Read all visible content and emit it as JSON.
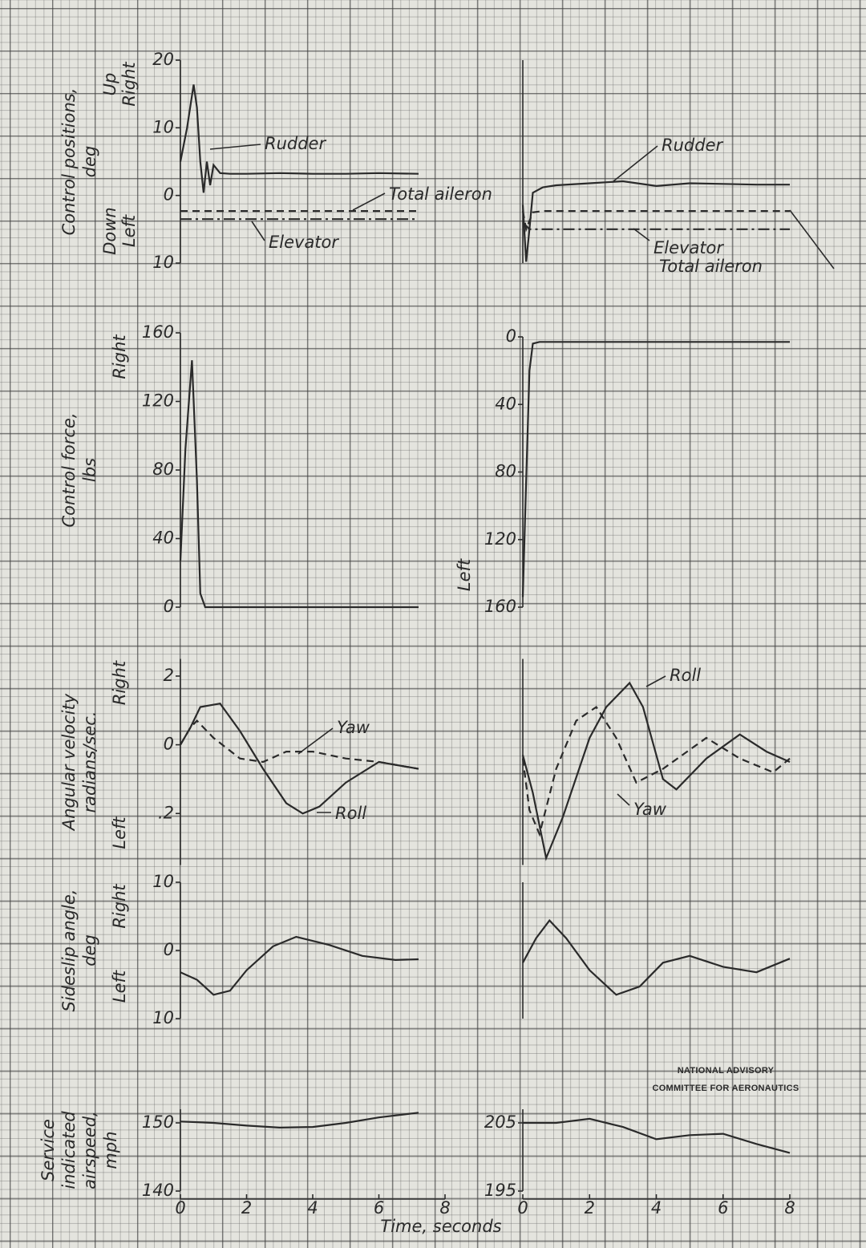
{
  "chart_data": [
    {
      "type": "line",
      "ylabel": [
        "Control positions,",
        "deg"
      ],
      "upper_label": [
        "Up",
        "Right"
      ],
      "lower_label": [
        "Down",
        "Left"
      ],
      "ylim": [
        -10,
        20
      ],
      "yticks": [
        20,
        10,
        0,
        {
          "value": -10,
          "label": "10"
        }
      ],
      "xlim": [
        0,
        8
      ],
      "annotations": [
        "Rudder",
        "Total aileron",
        "Elevator"
      ],
      "series": [
        {
          "dash": "solid",
          "color": "#2a2a2a",
          "x": [
            0,
            0.2,
            0.4,
            0.5,
            0.6,
            0.7,
            0.8,
            0.9,
            1.0,
            1.2,
            1.5,
            2,
            3,
            4,
            5,
            6,
            7.2
          ],
          "values": [
            5,
            10,
            16.4,
            13,
            5,
            0.4,
            5,
            1.5,
            4.5,
            3.3,
            3.2,
            3.2,
            3.3,
            3.2,
            3.2,
            3.3,
            3.2
          ]
        },
        {
          "dash": "dashed",
          "color": "#2a2a2a",
          "x": [
            0,
            7.2
          ],
          "values": [
            -2.3,
            -2.3
          ]
        },
        {
          "dash": "dashdot",
          "color": "#2a2a2a",
          "x": [
            0,
            7.2
          ],
          "values": [
            -3.5,
            -3.5
          ]
        }
      ]
    },
    {
      "type": "line",
      "ylim": [
        -10,
        20
      ],
      "xlim": [
        0,
        8
      ],
      "annotations": [
        "Rudder",
        "Elevator",
        "Total aileron"
      ],
      "series": [
        {
          "dash": "solid",
          "color": "#2a2a2a",
          "x": [
            0,
            0.1,
            0.2,
            0.3,
            0.6,
            1,
            2,
            3,
            4,
            5,
            6,
            7,
            8
          ],
          "values": [
            -1.4,
            -9.8,
            -5,
            0.4,
            1.2,
            1.5,
            1.8,
            2.1,
            1.4,
            1.8,
            1.7,
            1.6,
            1.6
          ]
        },
        {
          "dash": "dashdot",
          "color": "#2a2a2a",
          "x": [
            0,
            0.2,
            0.5,
            8
          ],
          "values": [
            -4,
            -5,
            -5,
            -5
          ]
        },
        {
          "dash": "dashed",
          "color": "#2a2a2a",
          "x": [
            0,
            0.1,
            0.3,
            0.6,
            8
          ],
          "values": [
            -2.3,
            -5,
            -2.5,
            -2.3,
            -2.3
          ]
        }
      ]
    },
    {
      "type": "line",
      "ylabel": [
        "Control force,",
        "lbs"
      ],
      "upper_label": [
        "Right"
      ],
      "ylim": [
        0,
        160
      ],
      "yticks": [
        160,
        120,
        80,
        40,
        0
      ],
      "xlim": [
        0,
        8
      ],
      "series": [
        {
          "dash": "solid",
          "color": "#2a2a2a",
          "x": [
            0,
            0.15,
            0.35,
            0.5,
            0.6,
            0.75,
            7.2
          ],
          "values": [
            27,
            92,
            144,
            74,
            8,
            0,
            0
          ]
        }
      ]
    },
    {
      "type": "line",
      "lower_label": [
        "Left"
      ],
      "ylim": [
        160,
        0
      ],
      "yticks": [
        0,
        40,
        80,
        120,
        160
      ],
      "xlim": [
        0,
        8
      ],
      "series": [
        {
          "dash": "solid",
          "color": "#2a2a2a",
          "x": [
            0,
            0.1,
            0.2,
            0.3,
            0.5,
            8
          ],
          "values": [
            154,
            85,
            20,
            4,
            3,
            3
          ]
        }
      ]
    },
    {
      "type": "line",
      "ylabel": [
        "Angular velocity",
        "radians/sec."
      ],
      "upper_label": [
        "Right"
      ],
      "lower_label": [
        "Left"
      ],
      "ylim": [
        -0.35,
        0.25
      ],
      "yticks": [
        {
          "value": 0.2,
          "label": "2"
        },
        0,
        {
          "value": -0.2,
          "label": ".2"
        }
      ],
      "xlim": [
        0,
        8
      ],
      "annotations": [
        "Yaw",
        "Roll"
      ],
      "series": [
        {
          "dash": "solid",
          "color": "#2a2a2a",
          "x": [
            0,
            0.3,
            0.6,
            1.2,
            1.8,
            2.5,
            3.2,
            3.7,
            4.2,
            5,
            6,
            7.2
          ],
          "values": [
            0,
            0.05,
            0.11,
            0.12,
            0.04,
            -0.07,
            -0.17,
            -0.2,
            -0.18,
            -0.11,
            -0.05,
            -0.07
          ]
        },
        {
          "dash": "dashed",
          "color": "#2a2a2a",
          "x": [
            0,
            0.3,
            0.5,
            1,
            1.8,
            2.5,
            3.2,
            4,
            5,
            6,
            7.2
          ],
          "values": [
            0,
            0.05,
            0.07,
            0.02,
            -0.04,
            -0.05,
            -0.02,
            -0.02,
            -0.04,
            -0.05,
            -0.07
          ]
        }
      ]
    },
    {
      "type": "line",
      "ylim": [
        -0.35,
        0.25
      ],
      "xlim": [
        0,
        8
      ],
      "annotations": [
        "Roll",
        "Yaw"
      ],
      "series": [
        {
          "dash": "solid",
          "color": "#2a2a2a",
          "x": [
            0,
            0.3,
            0.7,
            1.2,
            2,
            2.5,
            3.2,
            3.6,
            4.2,
            4.6,
            5.5,
            6.5,
            7.3,
            8
          ],
          "values": [
            -0.03,
            -0.14,
            -0.33,
            -0.21,
            0.02,
            0.11,
            0.18,
            0.11,
            -0.1,
            -0.13,
            -0.04,
            0.03,
            -0.02,
            -0.05
          ]
        },
        {
          "dash": "dashed",
          "color": "#2a2a2a",
          "x": [
            0,
            0.2,
            0.5,
            1,
            1.6,
            2.2,
            2.8,
            3.4,
            4.2,
            5.5,
            6.5,
            7.5,
            8
          ],
          "values": [
            -0.04,
            -0.19,
            -0.26,
            -0.07,
            0.07,
            0.11,
            0.02,
            -0.11,
            -0.07,
            0.02,
            -0.04,
            -0.08,
            -0.04
          ]
        }
      ]
    },
    {
      "type": "line",
      "ylabel": [
        "Sideslip angle,",
        "deg"
      ],
      "upper_label": [
        "Right"
      ],
      "lower_label": [
        "Left"
      ],
      "ylim": [
        -10,
        10
      ],
      "yticks": [
        10,
        0,
        {
          "value": -10,
          "label": "10"
        }
      ],
      "xlim": [
        0,
        8
      ],
      "series": [
        {
          "dash": "solid",
          "color": "#2a2a2a",
          "x": [
            0,
            0.5,
            1,
            1.5,
            2,
            2.8,
            3.5,
            4.5,
            5.5,
            6.5,
            7.2
          ],
          "values": [
            -3.2,
            -4.3,
            -6.5,
            -5.9,
            -2.9,
            0.6,
            2,
            0.8,
            -0.8,
            -1.4,
            -1.3
          ]
        }
      ]
    },
    {
      "type": "line",
      "ylim": [
        -10,
        10
      ],
      "xlim": [
        0,
        8
      ],
      "series": [
        {
          "dash": "solid",
          "color": "#2a2a2a",
          "x": [
            0,
            0.4,
            0.8,
            1.3,
            2,
            2.8,
            3.5,
            4.2,
            5,
            6,
            7,
            8
          ],
          "values": [
            -1.8,
            1.8,
            4.4,
            1.8,
            -2.9,
            -6.5,
            -5.3,
            -1.8,
            -0.8,
            -2.4,
            -3.2,
            -1.2
          ]
        }
      ]
    },
    {
      "type": "line",
      "ylabel": [
        "Service",
        "indicated",
        "airspeed,",
        "mph"
      ],
      "ylim": [
        140,
        152
      ],
      "yticks": [
        150,
        140
      ],
      "xlim": [
        0,
        8
      ],
      "xticks": [
        0,
        2,
        4,
        6,
        8
      ],
      "xlabel": "Time, seconds",
      "series": [
        {
          "dash": "solid",
          "color": "#2a2a2a",
          "x": [
            0,
            1,
            2,
            3,
            4,
            5,
            6,
            7.2
          ],
          "values": [
            150.2,
            150,
            149.6,
            149.3,
            149.4,
            150,
            150.8,
            151.5
          ]
        }
      ]
    },
    {
      "type": "line",
      "ylim": [
        195,
        207
      ],
      "yticks": [
        205,
        195
      ],
      "xlim": [
        0,
        8
      ],
      "xticks": [
        0,
        2,
        4,
        6,
        8
      ],
      "series": [
        {
          "dash": "solid",
          "color": "#2a2a2a",
          "x": [
            0,
            1,
            2,
            3,
            4,
            5,
            6,
            7,
            8
          ],
          "values": [
            205,
            205,
            205.6,
            204.4,
            202.6,
            203.2,
            203.4,
            201.9,
            200.6
          ]
        }
      ]
    }
  ],
  "credit": [
    "NATIONAL ADVISORY",
    "COMMITTEE FOR AERONAUTICS"
  ]
}
